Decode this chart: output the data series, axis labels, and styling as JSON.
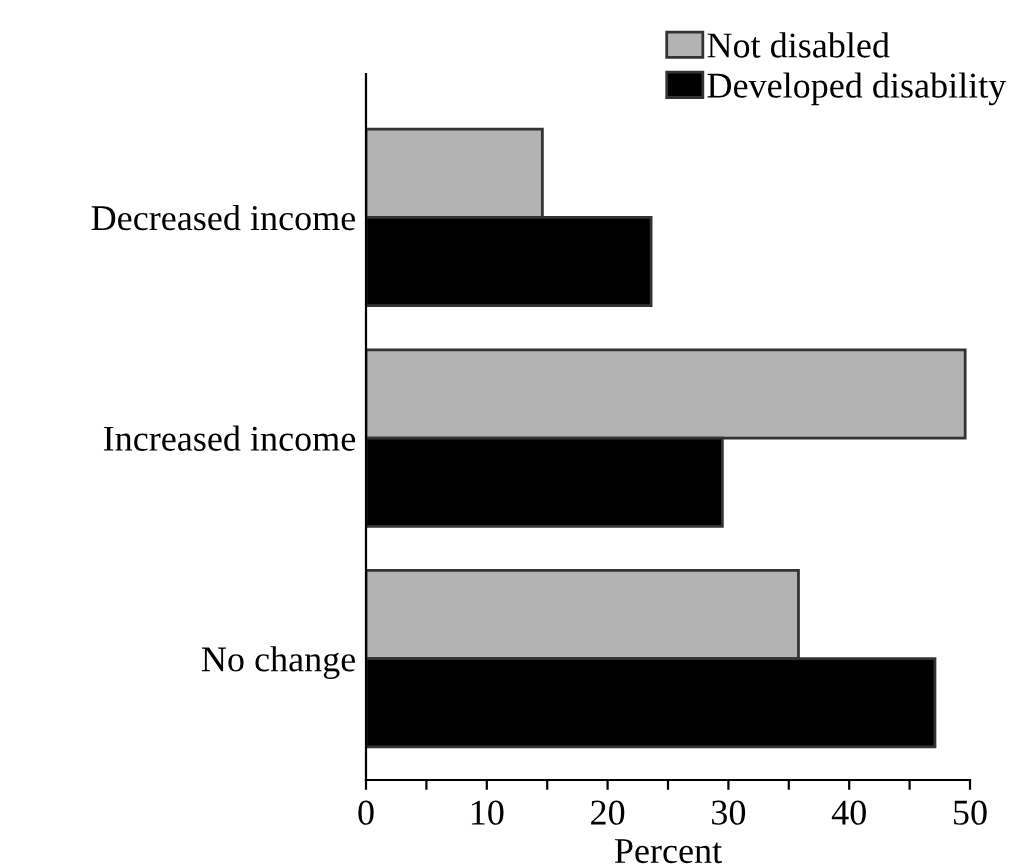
{
  "chart_data": {
    "type": "bar",
    "orientation": "horizontal",
    "xlabel": "Percent",
    "categories": [
      "Decreased income",
      "Increased income",
      "No change"
    ],
    "series": [
      {
        "name": "Not disabled",
        "color": "#b3b3b3",
        "values": [
          14.6,
          49.6,
          35.8
        ]
      },
      {
        "name": "Developed disability",
        "color": "#000000",
        "values": [
          23.6,
          29.5,
          47.1
        ]
      }
    ],
    "xlim": [
      0,
      50
    ],
    "xticks": [
      0,
      {
        "value": 5,
        "label": null
      },
      10,
      {
        "value": 15,
        "label": null
      },
      20,
      {
        "value": 25,
        "label": null
      },
      30,
      {
        "value": 35,
        "label": null
      },
      40,
      {
        "value": 45,
        "label": null
      },
      50
    ],
    "grid": false,
    "legend": "top right"
  }
}
